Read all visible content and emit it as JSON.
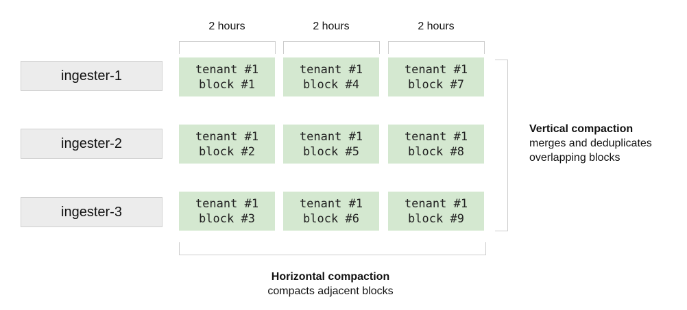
{
  "time_ranges": [
    "2 hours",
    "2 hours",
    "2 hours"
  ],
  "ingesters": [
    "ingester-1",
    "ingester-2",
    "ingester-3"
  ],
  "blocks": [
    [
      {
        "tenant": "tenant #1",
        "block": "block #1"
      },
      {
        "tenant": "tenant #1",
        "block": "block #4"
      },
      {
        "tenant": "tenant #1",
        "block": "block #7"
      }
    ],
    [
      {
        "tenant": "tenant #1",
        "block": "block #2"
      },
      {
        "tenant": "tenant #1",
        "block": "block #5"
      },
      {
        "tenant": "tenant #1",
        "block": "block #8"
      }
    ],
    [
      {
        "tenant": "tenant #1",
        "block": "block #3"
      },
      {
        "tenant": "tenant #1",
        "block": "block #6"
      },
      {
        "tenant": "tenant #1",
        "block": "block #9"
      }
    ]
  ],
  "vertical": {
    "title": "Vertical compaction",
    "desc1": "merges and deduplicates",
    "desc2": "overlapping blocks"
  },
  "horizontal": {
    "title": "Horizontal compaction",
    "desc": "compacts adjacent blocks"
  },
  "colors": {
    "block_fill": "#d4e8d0",
    "ingester_fill": "#ececec",
    "bracket": "#cccccc"
  }
}
